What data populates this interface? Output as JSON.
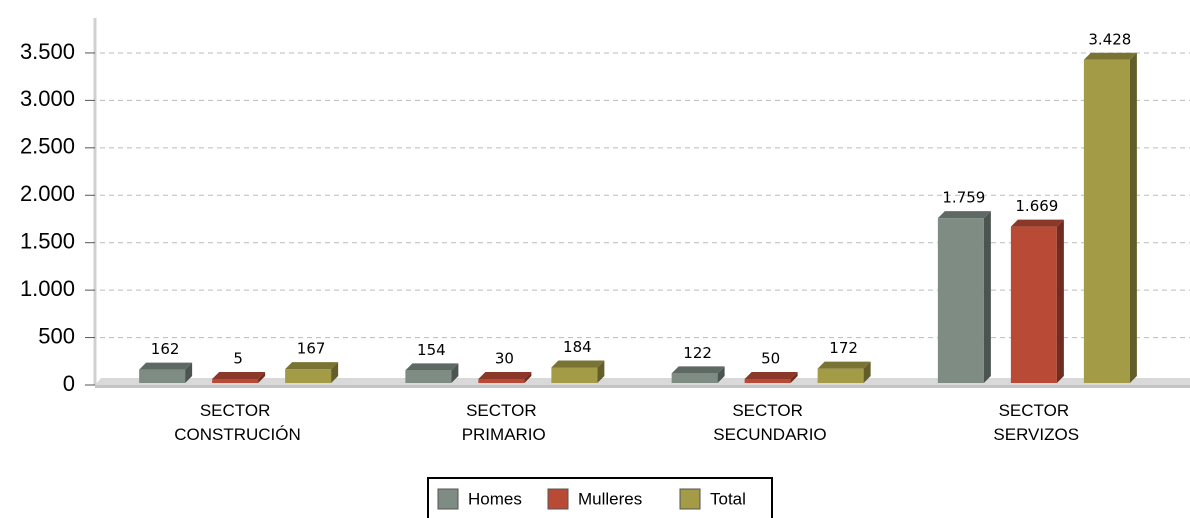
{
  "chart_data": {
    "type": "bar",
    "categories": [
      "SECTOR CONSTRUCIÓN",
      "SECTOR PRIMARIO",
      "SECTOR SECUNDARIO",
      "SECTOR SERVIZOS"
    ],
    "series": [
      {
        "name": "Homes",
        "color": "#7f8c84",
        "values": [
          162,
          154,
          122,
          1759
        ],
        "value_labels": [
          "162",
          "154",
          "122",
          "1.759"
        ]
      },
      {
        "name": "Mulleres",
        "color": "#b94a36",
        "values": [
          5,
          30,
          50,
          1669
        ],
        "value_labels": [
          "5",
          "30",
          "50",
          "1.669"
        ]
      },
      {
        "name": "Total",
        "color": "#a39b45",
        "values": [
          167,
          184,
          172,
          3428
        ],
        "value_labels": [
          "167",
          "184",
          "172",
          "3.428"
        ]
      }
    ],
    "ylim": [
      0,
      3900
    ],
    "yticks": [
      0,
      500,
      {
        "value": 1000,
        "label": "1.000"
      },
      {
        "value": 1500,
        "label": "1.500"
      },
      {
        "value": 2000,
        "label": "2.000"
      },
      {
        "value": 2500,
        "label": "2.500"
      },
      {
        "value": 3000,
        "label": "3.000"
      },
      {
        "value": 3500,
        "label": "3.500"
      }
    ],
    "grid": true,
    "legend": "bottom"
  }
}
